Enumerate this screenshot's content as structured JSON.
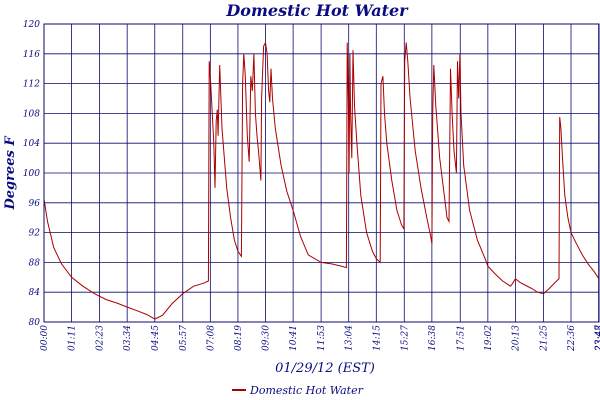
{
  "chart_data": {
    "type": "line",
    "title": "Domestic Hot Water",
    "xlabel": "01/29/12 (EST)",
    "ylabel": "Degrees F",
    "ylim": [
      80,
      120
    ],
    "yticks": [
      "80",
      "84",
      "88",
      "92",
      "96",
      "100",
      "104",
      "108",
      "112",
      "116",
      "120"
    ],
    "xticks": [
      "00:00",
      "01:11",
      "02:23",
      "03:34",
      "04:45",
      "05:57",
      "07:08",
      "08:19",
      "09:30",
      "10:41",
      "11:53",
      "13:04",
      "14:15",
      "15:27",
      "16:38",
      "17:51",
      "19:02",
      "20:13",
      "21:25",
      "22:36",
      "23:47",
      "23:48"
    ],
    "grid": true,
    "legend": "bottom",
    "series": [
      {
        "name": "Domestic Hot Water",
        "color": "#aa0000",
        "points": [
          [
            "00:00",
            96.5
          ],
          [
            "00:09",
            93.5
          ],
          [
            "00:25",
            90.0
          ],
          [
            "00:45",
            87.8
          ],
          [
            "01:11",
            86.0
          ],
          [
            "01:40",
            84.8
          ],
          [
            "02:10",
            83.8
          ],
          [
            "02:40",
            83.0
          ],
          [
            "03:10",
            82.5
          ],
          [
            "03:34",
            82.0
          ],
          [
            "04:00",
            81.5
          ],
          [
            "04:25",
            81.0
          ],
          [
            "04:45",
            80.4
          ],
          [
            "05:05",
            80.9
          ],
          [
            "05:30",
            82.5
          ],
          [
            "05:57",
            83.8
          ],
          [
            "06:25",
            84.8
          ],
          [
            "06:50",
            85.2
          ],
          [
            "07:03",
            85.5
          ],
          [
            "07:05",
            115.0
          ],
          [
            "07:09",
            112.0
          ],
          [
            "07:17",
            104.0
          ],
          [
            "07:20",
            98.0
          ],
          [
            "07:23",
            107.0
          ],
          [
            "07:26",
            108.5
          ],
          [
            "07:28",
            105.0
          ],
          [
            "07:32",
            114.5
          ],
          [
            "07:38",
            106.0
          ],
          [
            "07:50",
            98.0
          ],
          [
            "08:00",
            94.0
          ],
          [
            "08:10",
            91.0
          ],
          [
            "08:19",
            89.5
          ],
          [
            "08:28",
            88.8
          ],
          [
            "08:31",
            112.0
          ],
          [
            "08:34",
            116.0
          ],
          [
            "08:38",
            113.0
          ],
          [
            "08:43",
            105.0
          ],
          [
            "08:48",
            101.5
          ],
          [
            "08:52",
            113.0
          ],
          [
            "08:56",
            111.0
          ],
          [
            "09:00",
            116.0
          ],
          [
            "09:04",
            108.0
          ],
          [
            "09:08",
            105.0
          ],
          [
            "09:12",
            103.0
          ],
          [
            "09:18",
            99.0
          ],
          [
            "09:20",
            110.0
          ],
          [
            "09:25",
            117.0
          ],
          [
            "09:30",
            117.5
          ],
          [
            "09:34",
            116.0
          ],
          [
            "09:38",
            111.0
          ],
          [
            "09:41",
            109.5
          ],
          [
            "09:44",
            114.0
          ],
          [
            "09:48",
            110.0
          ],
          [
            "09:55",
            106.0
          ],
          [
            "10:10",
            101.0
          ],
          [
            "10:25",
            97.5
          ],
          [
            "10:41",
            95.0
          ],
          [
            "11:00",
            91.5
          ],
          [
            "11:20",
            89.0
          ],
          [
            "11:53",
            88.0
          ],
          [
            "12:20",
            87.8
          ],
          [
            "12:45",
            87.5
          ],
          [
            "12:58",
            87.3
          ],
          [
            "13:00",
            117.5
          ],
          [
            "13:03",
            110.0
          ],
          [
            "13:05",
            100.0
          ],
          [
            "13:07",
            116.0
          ],
          [
            "13:09",
            108.0
          ],
          [
            "13:12",
            102.0
          ],
          [
            "13:15",
            116.5
          ],
          [
            "13:19",
            109.0
          ],
          [
            "13:25",
            104.0
          ],
          [
            "13:35",
            97.0
          ],
          [
            "13:50",
            92.0
          ],
          [
            "14:05",
            89.5
          ],
          [
            "14:15",
            88.5
          ],
          [
            "14:25",
            88.0
          ],
          [
            "14:27",
            112.0
          ],
          [
            "14:32",
            113.0
          ],
          [
            "14:36",
            108.0
          ],
          [
            "14:42",
            104.0
          ],
          [
            "14:55",
            99.0
          ],
          [
            "15:08",
            95.0
          ],
          [
            "15:20",
            93.0
          ],
          [
            "15:26",
            92.5
          ],
          [
            "15:28",
            115.0
          ],
          [
            "15:32",
            117.5
          ],
          [
            "15:36",
            115.0
          ],
          [
            "15:42",
            110.0
          ],
          [
            "15:55",
            103.0
          ],
          [
            "16:10",
            98.0
          ],
          [
            "16:25",
            94.0
          ],
          [
            "16:35",
            91.5
          ],
          [
            "16:38",
            90.5
          ],
          [
            "16:40",
            108.0
          ],
          [
            "16:43",
            114.5
          ],
          [
            "16:48",
            109.0
          ],
          [
            "16:58",
            102.0
          ],
          [
            "17:10",
            97.0
          ],
          [
            "17:17",
            94.0
          ],
          [
            "17:22",
            93.5
          ],
          [
            "17:26",
            114.0
          ],
          [
            "17:30",
            108.0
          ],
          [
            "17:35",
            103.0
          ],
          [
            "17:41",
            100.0
          ],
          [
            "17:44",
            115.0
          ],
          [
            "17:47",
            110.0
          ],
          [
            "17:50",
            116.0
          ],
          [
            "17:53",
            108.0
          ],
          [
            "18:00",
            101.0
          ],
          [
            "18:15",
            95.0
          ],
          [
            "18:35",
            91.0
          ],
          [
            "18:55",
            88.5
          ],
          [
            "19:02",
            87.5
          ],
          [
            "19:20",
            86.5
          ],
          [
            "19:40",
            85.5
          ],
          [
            "19:55",
            85.0
          ],
          [
            "20:00",
            84.8
          ],
          [
            "20:06",
            85.2
          ],
          [
            "20:13",
            85.8
          ],
          [
            "20:25",
            85.3
          ],
          [
            "20:40",
            84.9
          ],
          [
            "20:55",
            84.5
          ],
          [
            "21:10",
            84.0
          ],
          [
            "21:25",
            83.8
          ],
          [
            "21:40",
            84.5
          ],
          [
            "21:55",
            85.3
          ],
          [
            "22:05",
            85.8
          ],
          [
            "22:07",
            107.5
          ],
          [
            "22:10",
            106.0
          ],
          [
            "22:14",
            102.0
          ],
          [
            "22:20",
            97.0
          ],
          [
            "22:28",
            94.0
          ],
          [
            "22:36",
            92.0
          ],
          [
            "22:50",
            90.5
          ],
          [
            "23:05",
            89.0
          ],
          [
            "23:20",
            87.8
          ],
          [
            "23:35",
            86.8
          ],
          [
            "23:48",
            85.8
          ]
        ]
      }
    ]
  }
}
